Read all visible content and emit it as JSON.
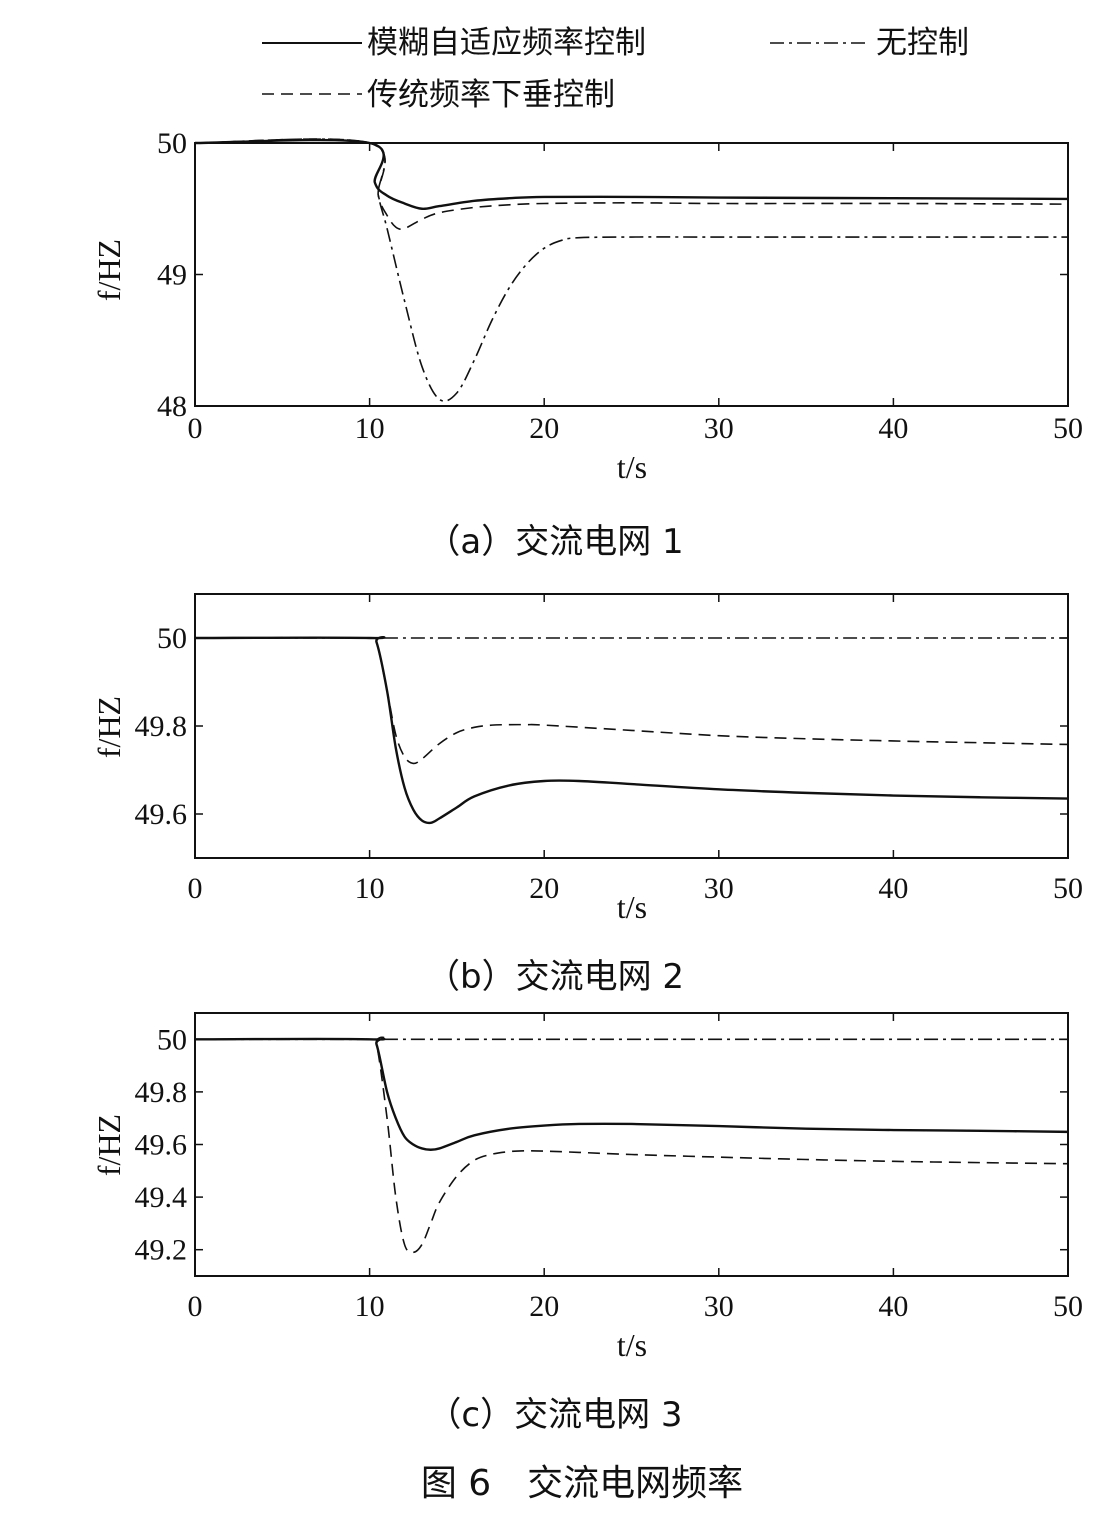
{
  "figure_caption": "图 6　交流电网频率",
  "legend": {
    "fuzzy": "模糊自适应频率控制",
    "none": "无控制",
    "droop": "传统频率下垂控制"
  },
  "styles": {
    "fuzzy": {
      "dash": "none"
    },
    "none": {
      "dash": "14 5 3 5"
    },
    "droop": {
      "dash": "12 7"
    }
  },
  "chart_data": [
    {
      "type": "line",
      "caption": "（a）交流电网 1",
      "xlabel": "t/s",
      "ylabel": "f/HZ",
      "xlim": [
        0,
        50
      ],
      "ylim": [
        48,
        50
      ],
      "xticks": [
        0,
        10,
        20,
        30,
        40,
        50
      ],
      "yticks": [
        48,
        49,
        50
      ],
      "series": [
        {
          "key": "fuzzy",
          "name": "模糊自适应频率控制",
          "x": [
            0,
            10,
            10.3,
            11,
            12,
            13,
            14,
            16,
            18,
            20,
            25,
            30,
            40,
            50
          ],
          "y": [
            50,
            50,
            49.7,
            49.6,
            49.54,
            49.5,
            49.52,
            49.56,
            49.58,
            49.59,
            49.59,
            49.585,
            49.58,
            49.575
          ]
        },
        {
          "key": "droop",
          "name": "传统频率下垂控制",
          "x": [
            0,
            10,
            10.5,
            11,
            11.5,
            12,
            13,
            14,
            16,
            18,
            20,
            25,
            30,
            40,
            50
          ],
          "y": [
            50,
            50,
            49.6,
            49.45,
            49.36,
            49.35,
            49.42,
            49.47,
            49.51,
            49.53,
            49.54,
            49.545,
            49.54,
            49.54,
            49.535
          ]
        },
        {
          "key": "none",
          "name": "无控制",
          "x": [
            0,
            10,
            10.5,
            11,
            12,
            13,
            14,
            15,
            16,
            17,
            18,
            19,
            20,
            21,
            22,
            25,
            30,
            40,
            50
          ],
          "y": [
            50,
            50,
            49.6,
            49.35,
            48.8,
            48.3,
            48.05,
            48.1,
            48.35,
            48.65,
            48.9,
            49.08,
            49.2,
            49.26,
            49.28,
            49.285,
            49.285,
            49.285,
            49.285
          ]
        }
      ]
    },
    {
      "type": "line",
      "caption": "（b）交流电网 2",
      "xlabel": "t/s",
      "ylabel": "f/HZ",
      "xlim": [
        0,
        50
      ],
      "ylim": [
        49.5,
        50.1
      ],
      "xticks": [
        0,
        10,
        20,
        30,
        40,
        50
      ],
      "yticks": [
        49.6,
        49.8,
        50
      ],
      "series": [
        {
          "key": "fuzzy",
          "name": "模糊自适应频率控制",
          "x": [
            0,
            10,
            10.4,
            11,
            11.5,
            12,
            12.5,
            13,
            13.5,
            14,
            15,
            16,
            18,
            20,
            22,
            25,
            30,
            35,
            40,
            45,
            50
          ],
          "y": [
            50,
            50,
            49.99,
            49.88,
            49.75,
            49.66,
            49.61,
            49.585,
            49.58,
            49.59,
            49.615,
            49.64,
            49.665,
            49.675,
            49.675,
            49.668,
            49.656,
            49.648,
            49.642,
            49.638,
            49.635
          ]
        },
        {
          "key": "droop",
          "name": "传统频率下垂控制",
          "x": [
            0,
            10,
            10.4,
            11,
            11.5,
            12,
            12.5,
            13,
            14,
            15,
            16,
            17,
            18,
            19,
            20,
            25,
            30,
            35,
            40,
            45,
            50
          ],
          "y": [
            50,
            50,
            49.99,
            49.88,
            49.78,
            49.73,
            49.715,
            49.725,
            49.76,
            49.785,
            49.797,
            49.802,
            49.803,
            49.803,
            49.802,
            49.79,
            49.778,
            49.771,
            49.766,
            49.762,
            49.758
          ]
        },
        {
          "key": "none",
          "name": "无控制",
          "x": [
            0,
            50
          ],
          "y": [
            50,
            50
          ]
        }
      ]
    },
    {
      "type": "line",
      "caption": "（c）交流电网 3",
      "xlabel": "t/s",
      "ylabel": "f/HZ",
      "xlim": [
        0,
        50
      ],
      "ylim": [
        49.1,
        50.1
      ],
      "xticks": [
        0,
        10,
        20,
        30,
        40,
        50
      ],
      "yticks": [
        49.2,
        49.4,
        49.6,
        49.8,
        50
      ],
      "series": [
        {
          "key": "fuzzy",
          "name": "模糊自适应频率控制",
          "x": [
            0,
            10,
            10.4,
            11,
            11.5,
            12,
            12.5,
            13,
            13.5,
            14,
            15,
            16,
            18,
            20,
            22,
            25,
            30,
            35,
            40,
            45,
            50
          ],
          "y": [
            50,
            50,
            49.98,
            49.8,
            49.7,
            49.63,
            49.6,
            49.585,
            49.58,
            49.585,
            49.61,
            49.635,
            49.66,
            49.672,
            49.678,
            49.678,
            49.67,
            49.66,
            49.655,
            49.652,
            49.648
          ]
        },
        {
          "key": "droop",
          "name": "传统频率下垂控制",
          "x": [
            0,
            10,
            10.4,
            11,
            11.5,
            12,
            12.5,
            13,
            13.5,
            14,
            15,
            16,
            17,
            18,
            19,
            20,
            22,
            25,
            30,
            35,
            40,
            45,
            50
          ],
          "y": [
            50,
            50,
            49.98,
            49.7,
            49.4,
            49.22,
            49.19,
            49.22,
            49.3,
            49.38,
            49.48,
            49.54,
            49.563,
            49.573,
            49.576,
            49.575,
            49.57,
            49.562,
            49.552,
            49.543,
            49.536,
            49.531,
            49.527
          ]
        },
        {
          "key": "none",
          "name": "无控制",
          "x": [
            0,
            50
          ],
          "y": [
            50,
            50
          ]
        }
      ]
    }
  ]
}
